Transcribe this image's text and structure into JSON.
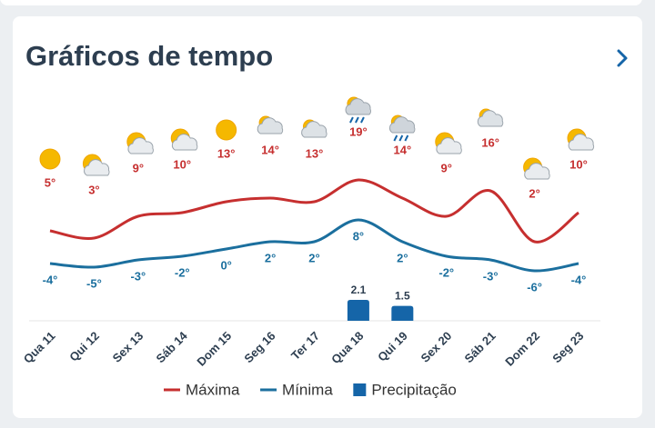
{
  "chart_data": {
    "type": "line",
    "title": "Gráficos de tempo",
    "categories": [
      "Qua 11",
      "Qui 12",
      "Sex 13",
      "Sáb 14",
      "Dom 15",
      "Seg 16",
      "Ter 17",
      "Qua 18",
      "Qui 19",
      "Sex 20",
      "Sáb 21",
      "Dom 22",
      "Seg 23"
    ],
    "series": [
      {
        "name": "Máxima",
        "color": "#c62f2f",
        "values": [
          5,
          3,
          9,
          10,
          13,
          14,
          13,
          19,
          14,
          9,
          16,
          2,
          10
        ],
        "value_labels": [
          "5°",
          "3°",
          "9°",
          "10°",
          "13°",
          "14°",
          "13°",
          "19°",
          "14°",
          "9°",
          "16°",
          "2°",
          "10°"
        ]
      },
      {
        "name": "Mínima",
        "color": "#1b6f9e",
        "values": [
          -4,
          -5,
          -3,
          -2,
          0,
          2,
          2,
          8,
          2,
          -2,
          -3,
          -6,
          -4
        ],
        "value_labels": [
          "-4°",
          "-5°",
          "-3°",
          "-2°",
          "0°",
          "2°",
          "2°",
          "8°",
          "2°",
          "-2°",
          "-3°",
          "-6°",
          "-4°"
        ]
      },
      {
        "name": "Precipitação",
        "type": "bar",
        "color": "#1565a8",
        "values": [
          null,
          null,
          null,
          null,
          null,
          null,
          null,
          2.1,
          1.5,
          null,
          null,
          null,
          null
        ]
      }
    ]
  }
}
